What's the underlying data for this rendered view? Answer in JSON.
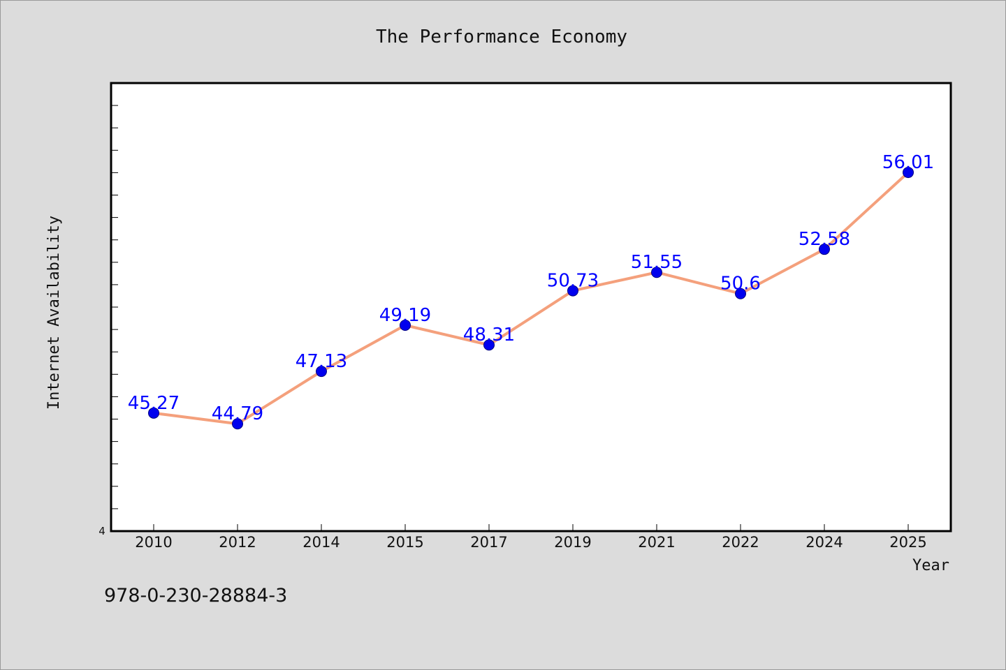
{
  "chart_data": {
    "type": "line",
    "title": "The Performance Economy",
    "xlabel": "Year",
    "ylabel": "Internet Availability",
    "categories": [
      "2010",
      "2012",
      "2014",
      "2015",
      "2017",
      "2019",
      "2021",
      "2022",
      "2024",
      "2025"
    ],
    "values": [
      45.27,
      44.79,
      47.13,
      49.19,
      48.31,
      50.73,
      51.55,
      50.6,
      52.58,
      56.01
    ],
    "data_labels": [
      "45.27",
      "44.79",
      "47.13",
      "49.19",
      "48.31",
      "50.73",
      "51.55",
      "50.6",
      "52.58",
      "56.01"
    ],
    "y_tick_labels": [
      "4"
    ],
    "ylim": [
      40,
      60
    ],
    "grid": false,
    "line_color": "#f4a07c",
    "marker_color": "#0000ee",
    "label_color": "#0000ff"
  },
  "footer": {
    "isbn": "978-0-230-28884-3"
  }
}
